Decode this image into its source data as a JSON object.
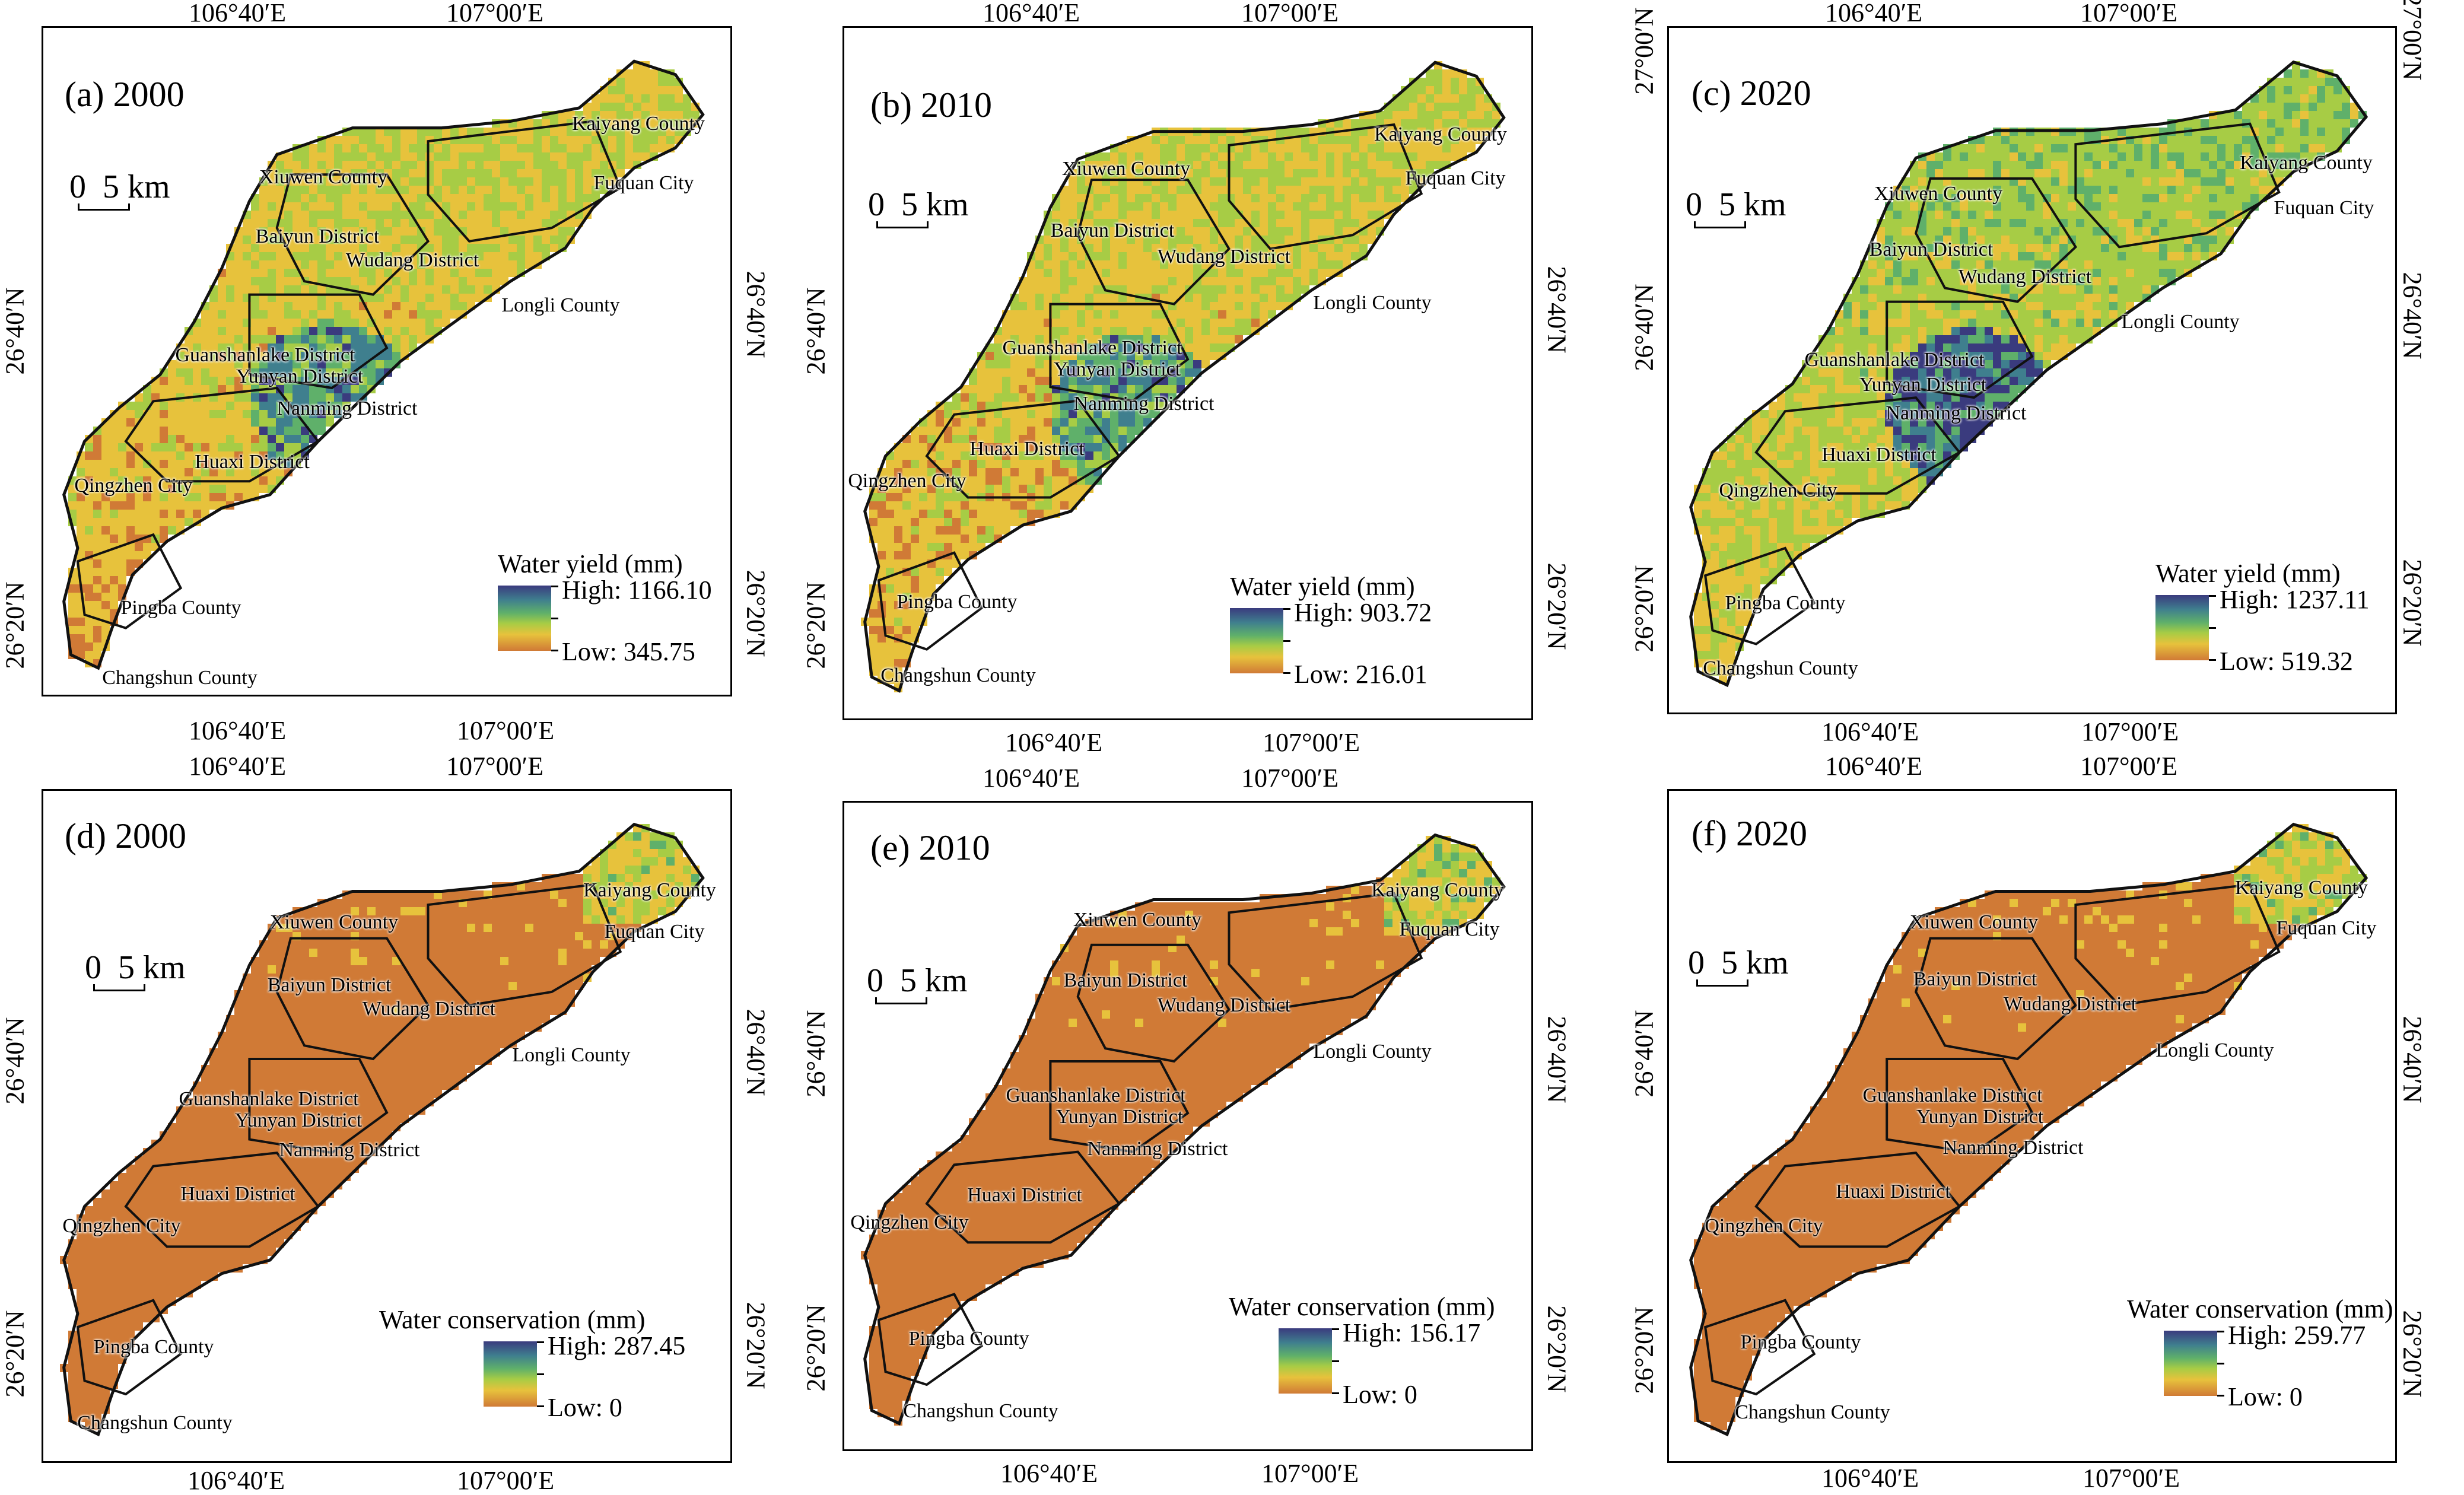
{
  "tick_labels": {
    "lon_west": "106°40′E",
    "lon_east": "107°00′E",
    "lat_north": "26°40′N",
    "lat_south": "26°20′N",
    "lat_far_north": "27°00′N"
  },
  "scale_bar": {
    "zero": "0",
    "distance": "5 km"
  },
  "regions": {
    "kaiyang": "Kaiyang County",
    "xiuwen": "Xiuwen County",
    "fuquan": "Fuquan City",
    "baiyun": "Baiyun District",
    "wudang": "Wudang District",
    "longli": "Longli County",
    "guanshanlake": "Guanshanlake District",
    "yunyan": "Yunyan District",
    "nanming": "Nanming District",
    "huaxi": "Huaxi District",
    "qingzhen": "Qingzhen City",
    "pingba": "Pingba County",
    "changshun": "Changshun County"
  },
  "panels": [
    {
      "title": "(a) 2000",
      "legend_title": "Water yield (mm)",
      "high": "High: 1166.10",
      "low": "Low: 345.75"
    },
    {
      "title": "(b) 2010",
      "legend_title": "Water yield (mm)",
      "high": "High: 903.72",
      "low": "Low: 216.01"
    },
    {
      "title": "(c) 2020",
      "legend_title": "Water yield (mm)",
      "high": "High: 1237.11",
      "low": "Low: 519.32"
    },
    {
      "title": "(d) 2000",
      "legend_title": "Water conservation (mm)",
      "high": "High: 287.45",
      "low": "Low: 0"
    },
    {
      "title": "(e) 2010",
      "legend_title": "Water conservation (mm)",
      "high": "High: 156.17",
      "low": "Low: 0"
    },
    {
      "title": "(f) 2020",
      "legend_title": "Water conservation (mm)",
      "high": "High: 259.77",
      "low": "Low: 0"
    }
  ],
  "colors": {
    "ramp_high": "#3a3b7e",
    "ramp_mid_high": "#3f7f8e",
    "ramp_mid": "#5fb06a",
    "ramp_mid_low": "#a7cc45",
    "ramp_low_mid": "#e7c23c",
    "ramp_low": "#d07a36",
    "boundary": "#111111"
  }
}
